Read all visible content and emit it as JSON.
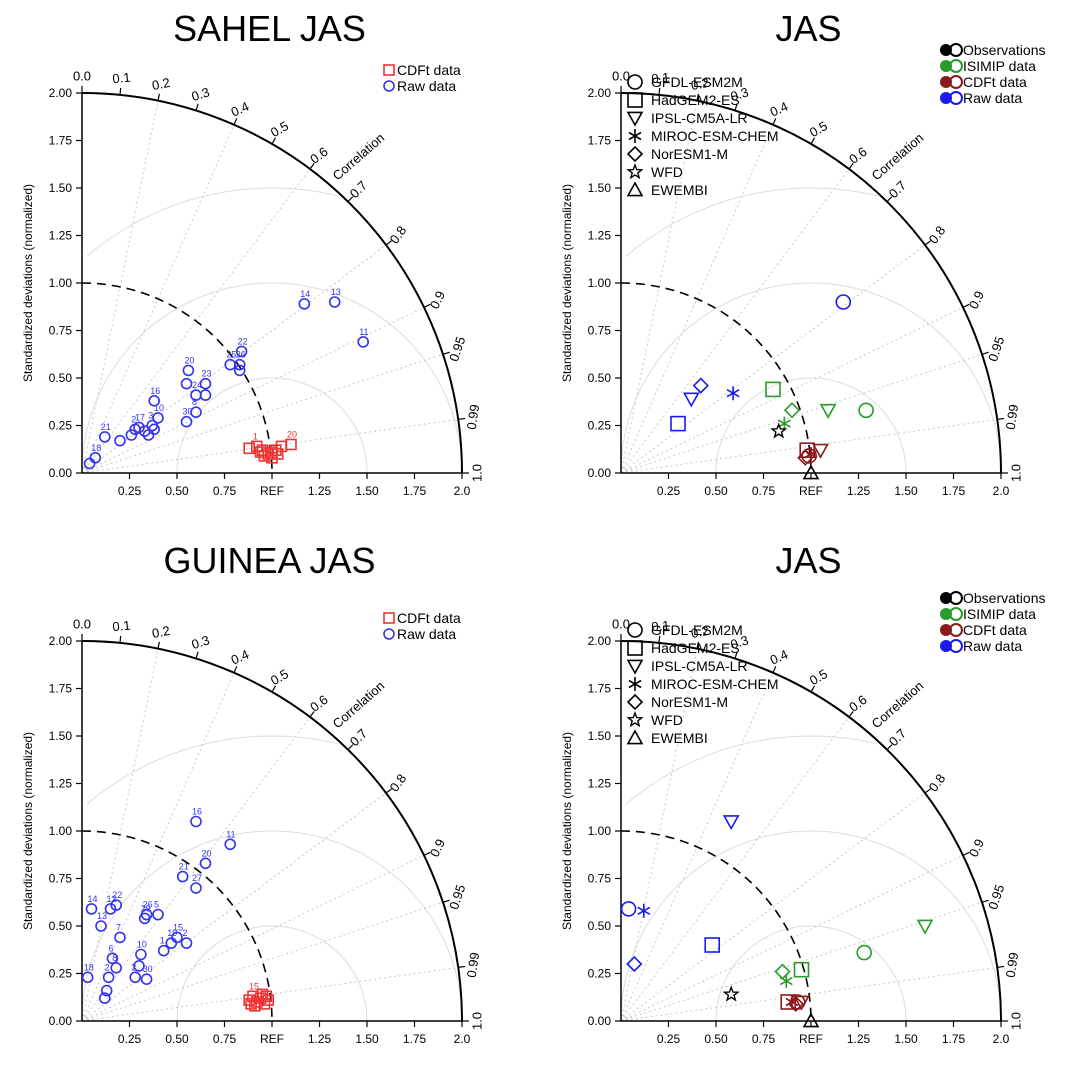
{
  "chart_data": [
    {
      "type": "taylor",
      "title": "SAHEL JAS",
      "ylabel": "Standardized deviations (normalized)",
      "arc_label": "Correlation",
      "ref_label": "REF",
      "std_ticks": [
        "0.00",
        "0.25",
        "0.50",
        "0.75",
        "1.00",
        "1.25",
        "1.50",
        "1.75",
        "2.00"
      ],
      "x_ticks": [
        "0.25",
        "0.50",
        "0.75",
        "REF",
        "1.25",
        "1.50",
        "1.75",
        "2.0"
      ],
      "corr_ticks": [
        "0.0",
        "0.1",
        "0.2",
        "0.3",
        "0.4",
        "0.5",
        "0.6",
        "0.7",
        "0.8",
        "0.9",
        "0.95",
        "0.99",
        "1.0"
      ],
      "legend_mode": "simple",
      "legend": [
        {
          "marker": "square",
          "color": "#ee3333",
          "label": "CDFt data"
        },
        {
          "marker": "circle",
          "color": "#3333ee",
          "label": "Raw data"
        }
      ],
      "series": [
        {
          "name": "CDFt data",
          "marker": "square",
          "color": "#ee3333",
          "points": [
            [
              0.88,
              0.13,
              ""
            ],
            [
              0.92,
              0.14,
              "1"
            ],
            [
              0.95,
              0.12,
              ""
            ],
            [
              0.98,
              0.1,
              ""
            ],
            [
              1.0,
              0.11,
              ""
            ],
            [
              1.02,
              0.12,
              ""
            ],
            [
              1.05,
              0.14,
              ""
            ],
            [
              1.1,
              0.15,
              "20"
            ],
            [
              0.96,
              0.09,
              ""
            ],
            [
              1.0,
              0.08,
              ""
            ],
            [
              1.03,
              0.1,
              ""
            ],
            [
              0.94,
              0.11,
              ""
            ]
          ]
        },
        {
          "name": "Raw data",
          "marker": "circle",
          "color": "#3333ee",
          "points": [
            [
              0.04,
              0.05,
              ""
            ],
            [
              0.07,
              0.08,
              "18"
            ],
            [
              0.12,
              0.19,
              "21"
            ],
            [
              0.2,
              0.17,
              ""
            ],
            [
              0.26,
              0.2,
              ""
            ],
            [
              0.28,
              0.23,
              "2"
            ],
            [
              0.3,
              0.24,
              "17"
            ],
            [
              0.33,
              0.22,
              ""
            ],
            [
              0.35,
              0.2,
              ""
            ],
            [
              0.37,
              0.25,
              "3"
            ],
            [
              0.38,
              0.23,
              ""
            ],
            [
              0.4,
              0.29,
              "10"
            ],
            [
              0.38,
              0.38,
              "16"
            ],
            [
              0.55,
              0.27,
              "30"
            ],
            [
              0.6,
              0.32,
              "8"
            ],
            [
              0.55,
              0.47,
              ""
            ],
            [
              0.56,
              0.54,
              "20"
            ],
            [
              0.6,
              0.41,
              "24"
            ],
            [
              0.65,
              0.41,
              ""
            ],
            [
              0.65,
              0.47,
              "23"
            ],
            [
              0.78,
              0.57,
              "25"
            ],
            [
              0.83,
              0.54,
              ""
            ],
            [
              0.83,
              0.57,
              "26"
            ],
            [
              0.84,
              0.64,
              "22"
            ],
            [
              1.17,
              0.89,
              "14"
            ],
            [
              1.33,
              0.9,
              "13"
            ],
            [
              1.48,
              0.69,
              "11"
            ]
          ]
        }
      ]
    },
    {
      "type": "taylor",
      "title": "JAS",
      "ylabel": "Standardized deviations (normalized)",
      "arc_label": "Correlation",
      "ref_label": "REF",
      "std_ticks": [
        "0.00",
        "0.25",
        "0.50",
        "0.75",
        "1.00",
        "1.25",
        "1.50",
        "1.75",
        "2.00"
      ],
      "x_ticks": [
        "0.25",
        "0.50",
        "0.75",
        "REF",
        "1.25",
        "1.50",
        "1.75",
        "2.0"
      ],
      "corr_ticks": [
        "0.0",
        "0.1",
        "0.2",
        "0.3",
        "0.4",
        "0.5",
        "0.6",
        "0.7",
        "0.8",
        "0.9",
        "0.95",
        "0.99",
        "1.0"
      ],
      "legend_mode": "full",
      "legend_colors": [
        {
          "color": "#000000",
          "label": "Observations"
        },
        {
          "color": "#2a9a2a",
          "label": "ISIMIP data"
        },
        {
          "color": "#8b1a1a",
          "label": "CDFt data"
        },
        {
          "color": "#1a1aee",
          "label": "Raw data"
        }
      ],
      "legend_models": [
        {
          "marker": "circle",
          "label": "GFDL-ESM2M"
        },
        {
          "marker": "square",
          "label": "HadGEM2-ES"
        },
        {
          "marker": "triangle-down",
          "label": "IPSL-CM5A-LR"
        },
        {
          "marker": "asterisk",
          "label": "MIROC-ESM-CHEM"
        },
        {
          "marker": "diamond",
          "label": "NorESM1-M"
        },
        {
          "marker": "star",
          "label": "WFD"
        },
        {
          "marker": "triangle-up",
          "label": "EWEMBI"
        }
      ],
      "series": [
        {
          "name": "Raw data",
          "color": "#1a1aee",
          "points": [
            [
              1.17,
              0.9,
              "circle"
            ],
            [
              0.3,
              0.26,
              "square"
            ],
            [
              0.37,
              0.39,
              "triangle-down"
            ],
            [
              0.59,
              0.42,
              "asterisk"
            ],
            [
              0.42,
              0.46,
              "diamond"
            ]
          ]
        },
        {
          "name": "ISIMIP data",
          "color": "#2a9a2a",
          "points": [
            [
              1.29,
              0.33,
              "circle"
            ],
            [
              0.8,
              0.44,
              "square"
            ],
            [
              1.09,
              0.33,
              "triangle-down"
            ],
            [
              0.86,
              0.26,
              "asterisk"
            ],
            [
              0.9,
              0.33,
              "diamond"
            ]
          ]
        },
        {
          "name": "CDFt data",
          "color": "#8b1a1a",
          "points": [
            [
              0.99,
              0.09,
              "circle"
            ],
            [
              0.98,
              0.12,
              "square"
            ],
            [
              1.05,
              0.12,
              "triangle-down"
            ],
            [
              1.0,
              0.1,
              "asterisk"
            ],
            [
              0.97,
              0.08,
              "diamond"
            ]
          ]
        },
        {
          "name": "Observations",
          "color": "#000000",
          "points": [
            [
              0.83,
              0.22,
              "star"
            ],
            [
              1.0,
              0.0,
              "triangle-up"
            ]
          ]
        }
      ]
    },
    {
      "type": "taylor",
      "title": "GUINEA JAS",
      "ylabel": "Standardized deviations (normalized)",
      "arc_label": "Correlation",
      "ref_label": "REF",
      "std_ticks": [
        "0.00",
        "0.25",
        "0.50",
        "0.75",
        "1.00",
        "1.25",
        "1.50",
        "1.75",
        "2.00"
      ],
      "x_ticks": [
        "0.25",
        "0.50",
        "0.75",
        "REF",
        "1.25",
        "1.50",
        "1.75",
        "2.0"
      ],
      "corr_ticks": [
        "0.0",
        "0.1",
        "0.2",
        "0.3",
        "0.4",
        "0.5",
        "0.6",
        "0.7",
        "0.8",
        "0.9",
        "0.95",
        "0.99",
        "1.0"
      ],
      "legend_mode": "simple",
      "legend": [
        {
          "marker": "square",
          "color": "#ee3333",
          "label": "CDFt data"
        },
        {
          "marker": "circle",
          "color": "#3333ee",
          "label": "Raw data"
        }
      ],
      "series": [
        {
          "name": "CDFt data",
          "marker": "square",
          "color": "#ee3333",
          "points": [
            [
              0.88,
              0.11,
              ""
            ],
            [
              0.9,
              0.13,
              "15"
            ],
            [
              0.92,
              0.1,
              ""
            ],
            [
              0.94,
              0.12,
              ""
            ],
            [
              0.96,
              0.09,
              ""
            ],
            [
              0.98,
              0.11,
              ""
            ],
            [
              0.91,
              0.08,
              ""
            ],
            [
              0.95,
              0.14,
              ""
            ],
            [
              0.89,
              0.09,
              ""
            ],
            [
              0.97,
              0.13,
              ""
            ]
          ]
        },
        {
          "name": "Raw data",
          "marker": "circle",
          "color": "#3333ee",
          "points": [
            [
              0.03,
              0.23,
              "18"
            ],
            [
              0.05,
              0.59,
              "14"
            ],
            [
              0.1,
              0.5,
              "13"
            ],
            [
              0.15,
              0.59,
              "12"
            ],
            [
              0.18,
              0.61,
              "22"
            ],
            [
              0.16,
              0.33,
              "6"
            ],
            [
              0.18,
              0.28,
              "8"
            ],
            [
              0.13,
              0.16,
              ""
            ],
            [
              0.12,
              0.12,
              ""
            ],
            [
              0.14,
              0.23,
              "2"
            ],
            [
              0.2,
              0.44,
              "7"
            ],
            [
              0.28,
              0.23,
              "2"
            ],
            [
              0.3,
              0.29,
              ""
            ],
            [
              0.31,
              0.35,
              "10"
            ],
            [
              0.34,
              0.22,
              "30"
            ],
            [
              0.33,
              0.54,
              "29"
            ],
            [
              0.34,
              0.56,
              "26"
            ],
            [
              0.4,
              0.56,
              "5"
            ],
            [
              0.43,
              0.37,
              "1"
            ],
            [
              0.47,
              0.41,
              "19"
            ],
            [
              0.5,
              0.44,
              "15"
            ],
            [
              0.55,
              0.41,
              "2"
            ],
            [
              0.53,
              0.76,
              "21"
            ],
            [
              0.6,
              0.7,
              "27"
            ],
            [
              0.65,
              0.83,
              "20"
            ],
            [
              0.78,
              0.93,
              "11"
            ],
            [
              0.6,
              1.05,
              "16"
            ]
          ]
        }
      ]
    },
    {
      "type": "taylor",
      "title": "JAS",
      "ylabel": "Standardized deviations (normalized)",
      "arc_label": "Correlation",
      "ref_label": "REF",
      "std_ticks": [
        "0.00",
        "0.25",
        "0.50",
        "0.75",
        "1.00",
        "1.25",
        "1.50",
        "1.75",
        "2.00"
      ],
      "x_ticks": [
        "0.25",
        "0.50",
        "0.75",
        "REF",
        "1.25",
        "1.50",
        "1.75",
        "2.0"
      ],
      "corr_ticks": [
        "0.0",
        "0.1",
        "0.2",
        "0.3",
        "0.4",
        "0.5",
        "0.6",
        "0.7",
        "0.8",
        "0.9",
        "0.95",
        "0.99",
        "1.0"
      ],
      "legend_mode": "full",
      "legend_colors": [
        {
          "color": "#000000",
          "label": "Observations"
        },
        {
          "color": "#2a9a2a",
          "label": "ISIMIP data"
        },
        {
          "color": "#8b1a1a",
          "label": "CDFt data"
        },
        {
          "color": "#1a1aee",
          "label": "Raw data"
        }
      ],
      "legend_models": [
        {
          "marker": "circle",
          "label": "GFDL-ESM2M"
        },
        {
          "marker": "square",
          "label": "HadGEM2-ES"
        },
        {
          "marker": "triangle-down",
          "label": "IPSL-CM5A-LR"
        },
        {
          "marker": "asterisk",
          "label": "MIROC-ESM-CHEM"
        },
        {
          "marker": "diamond",
          "label": "NorESM1-M"
        },
        {
          "marker": "star",
          "label": "WFD"
        },
        {
          "marker": "triangle-up",
          "label": "EWEMBI"
        }
      ],
      "series": [
        {
          "name": "Raw data",
          "color": "#1a1aee",
          "points": [
            [
              0.04,
              0.59,
              "circle"
            ],
            [
              0.48,
              0.4,
              "square"
            ],
            [
              0.58,
              1.05,
              "triangle-down"
            ],
            [
              0.12,
              0.58,
              "asterisk"
            ],
            [
              0.07,
              0.3,
              "diamond"
            ]
          ]
        },
        {
          "name": "ISIMIP data",
          "color": "#2a9a2a",
          "points": [
            [
              1.28,
              0.36,
              "circle"
            ],
            [
              0.95,
              0.27,
              "square"
            ],
            [
              1.6,
              0.5,
              "triangle-down"
            ],
            [
              0.87,
              0.21,
              "asterisk"
            ],
            [
              0.85,
              0.26,
              "diamond"
            ]
          ]
        },
        {
          "name": "CDFt data",
          "color": "#8b1a1a",
          "points": [
            [
              0.93,
              0.1,
              "circle"
            ],
            [
              0.88,
              0.1,
              "square"
            ],
            [
              0.95,
              0.1,
              "triangle-down"
            ],
            [
              0.9,
              0.1,
              "asterisk"
            ],
            [
              0.92,
              0.09,
              "diamond"
            ]
          ]
        },
        {
          "name": "Observations",
          "color": "#000000",
          "points": [
            [
              0.58,
              0.14,
              "star"
            ],
            [
              1.0,
              0.0,
              "triangle-up"
            ]
          ]
        }
      ]
    }
  ]
}
